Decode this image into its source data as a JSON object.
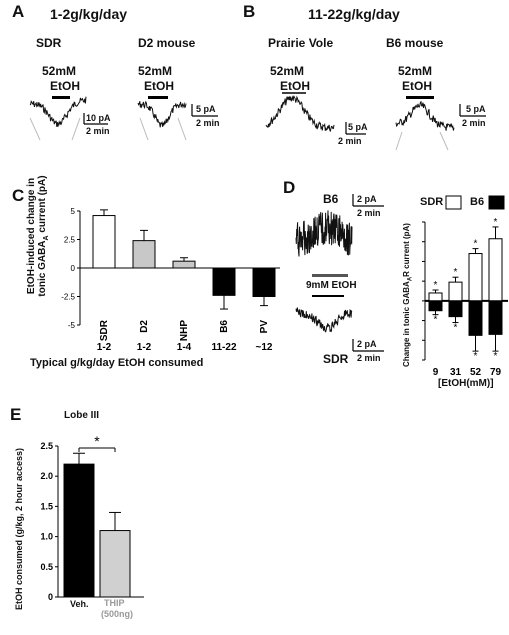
{
  "panels": {
    "A": {
      "letter": "A",
      "dose_header": "1-2g/kg/day",
      "traces": [
        {
          "label": "SDR",
          "drug_conc": "52mM",
          "drug_name": "EtOH",
          "scale_pa": "10 pA",
          "scale_time": "2 min"
        },
        {
          "label": "D2 mouse",
          "drug_conc": "52mM",
          "drug_name": "EtOH",
          "scale_pa": "5 pA",
          "scale_time": "2 min"
        }
      ]
    },
    "B": {
      "letter": "B",
      "dose_header": "11-22g/kg/day",
      "traces": [
        {
          "label": "Prairie Vole",
          "drug_conc": "52mM",
          "drug_name": "EtOH",
          "scale_pa": "5 pA",
          "scale_time": "2 min"
        },
        {
          "label": "B6 mouse",
          "drug_conc": "52mM",
          "drug_name": "EtOH",
          "scale_pa": "5 pA",
          "scale_time": "2 min"
        }
      ]
    },
    "C": {
      "letter": "C",
      "ylabel_line1": "EtOH-induced change in",
      "ylabel_line2": "tonic GABA",
      "ylabel_sub": "A",
      "ylabel_line2_tail": " current (pA)",
      "xlabel": "Typical g/kg/day EtOH consumed",
      "doses": [
        "1-2",
        "1-2",
        "1-4",
        "11-22",
        "~12"
      ],
      "yticks": [
        "5",
        "2.5",
        "0",
        "-2.5",
        "-5"
      ]
    },
    "D": {
      "letter": "D",
      "trace_b6_label": "B6",
      "trace_sdr_label": "SDR",
      "drug_label": "9mM EtOH",
      "scale_pa": "2 pA",
      "scale_time": "2 min",
      "legend_sdr": "SDR",
      "legend_b6": "B6",
      "ylabel": "Change in tonic GABA",
      "ylabel_sub": "A",
      "ylabel_tail": "R current (pA)",
      "xlabel": "[EtOH(mM)]",
      "yticks": [
        "8",
        "6",
        "4",
        "2",
        "0",
        "-2",
        "-4",
        "-6"
      ],
      "star": "*"
    },
    "E": {
      "letter": "E",
      "subtitle": "Lobe III",
      "ylabel": "EtOH consumed (g/kg, 2 hour access)",
      "yticks": [
        "2.5",
        "2.0",
        "1.5",
        "1.0",
        "0.5",
        "0"
      ],
      "sig": "*",
      "xlabels": [
        "Veh.",
        "THIP",
        "(500ng)"
      ]
    }
  },
  "chart_data": [
    {
      "type": "bar",
      "panel": "C",
      "categories": [
        "SDR",
        "D2",
        "NHP",
        "B6",
        "PV"
      ],
      "values": [
        4.6,
        2.4,
        0.6,
        -2.4,
        -2.5
      ],
      "errors": [
        0.5,
        0.9,
        0.3,
        1.2,
        0.8
      ],
      "ylim": [
        -5,
        5
      ],
      "colors": [
        "#ffffff",
        "#c8c8c8",
        "#c8c8c8",
        "#000000",
        "#000000"
      ]
    },
    {
      "type": "bar",
      "panel": "D",
      "categories": [
        "9",
        "31",
        "52",
        "79"
      ],
      "series": [
        {
          "name": "SDR",
          "values": [
            0.8,
            1.9,
            4.8,
            6.3
          ],
          "errors": [
            0.3,
            0.5,
            0.5,
            1.2
          ],
          "color": "#ffffff"
        },
        {
          "name": "B6",
          "values": [
            -1.0,
            -1.6,
            -3.5,
            -3.4
          ],
          "errors": [
            0.4,
            0.6,
            1.6,
            1.7
          ],
          "color": "#000000"
        }
      ],
      "ylim": [
        -6,
        8
      ]
    },
    {
      "type": "bar",
      "panel": "E",
      "categories": [
        "Veh.",
        "THIP (500ng)"
      ],
      "values": [
        2.2,
        1.1
      ],
      "errors": [
        0.18,
        0.3
      ],
      "ylim": [
        0,
        2.5
      ],
      "colors": [
        "#000000",
        "#d0d0d0"
      ]
    }
  ]
}
